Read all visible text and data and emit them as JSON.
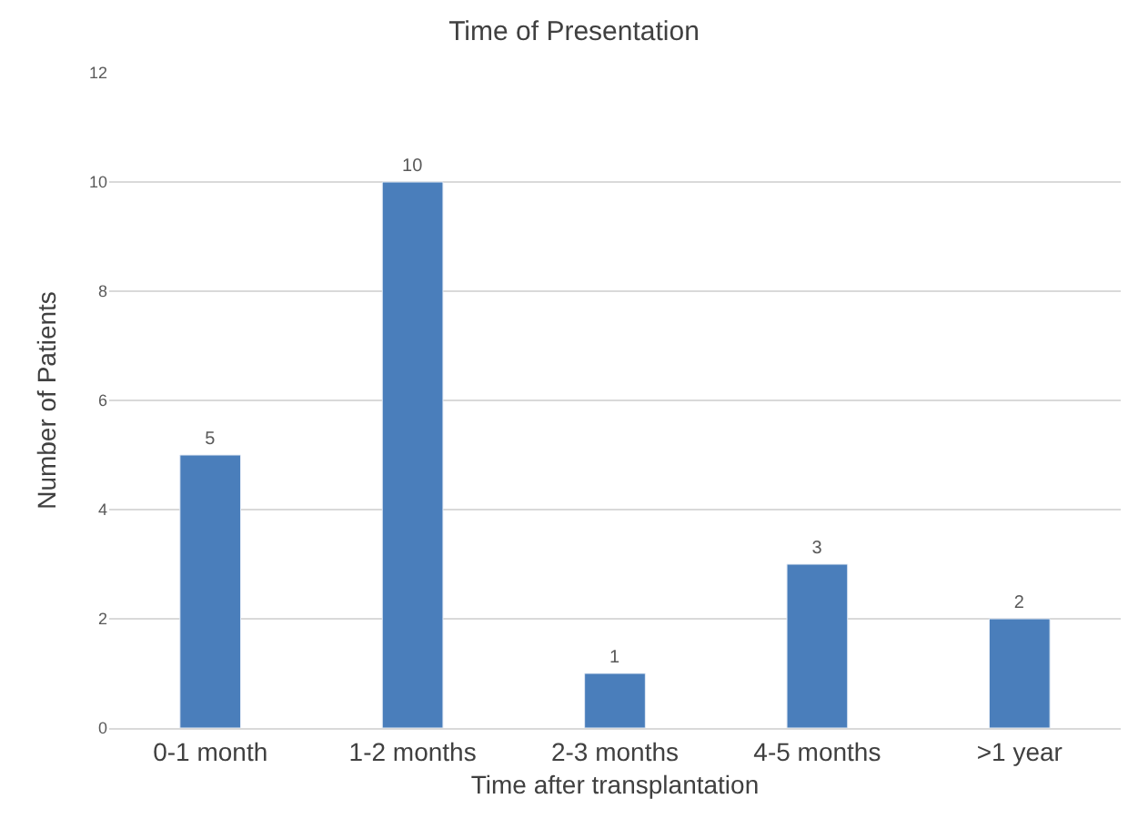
{
  "chart_data": {
    "type": "bar",
    "title": "Time of Presentation",
    "xlabel": "Time after transplantation",
    "ylabel": "Number of Patients",
    "categories": [
      "0-1 month",
      "1-2 months",
      "2-3 months",
      "4-5 months",
      ">1 year"
    ],
    "values": [
      5,
      10,
      1,
      3,
      2
    ],
    "color": "#4a7ebb",
    "ylim": [
      0,
      12
    ],
    "yticks": [
      0,
      2,
      4,
      6,
      8,
      10,
      12
    ],
    "grid": "y",
    "data_labels": true
  }
}
